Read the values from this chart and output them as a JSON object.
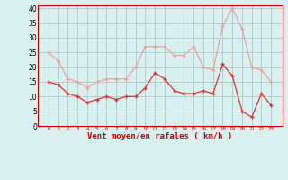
{
  "x": [
    0,
    1,
    2,
    3,
    4,
    5,
    6,
    7,
    8,
    9,
    10,
    11,
    12,
    13,
    14,
    15,
    16,
    17,
    18,
    19,
    20,
    21,
    22,
    23
  ],
  "y_mean": [
    15,
    14,
    11,
    10,
    8,
    9,
    10,
    9,
    10,
    10,
    13,
    18,
    16,
    12,
    11,
    11,
    12,
    11,
    21,
    17,
    5,
    3,
    11,
    7
  ],
  "y_gust": [
    25,
    22,
    16,
    15,
    13,
    15,
    16,
    16,
    16,
    20,
    27,
    27,
    27,
    24,
    24,
    27,
    20,
    19,
    34,
    40,
    33,
    20,
    19,
    15
  ],
  "color_mean": "#dd3333",
  "color_gust": "#f0a0a0",
  "xlabel": "Vent moyen/en rafales ( km/h )",
  "xlabel_color": "#cc0000",
  "background_color": "#d8f0f0",
  "grid_color": "#aacccc",
  "ylim": [
    0,
    41
  ],
  "yticks": [
    0,
    5,
    10,
    15,
    20,
    25,
    30,
    35,
    40
  ],
  "xticks": [
    0,
    1,
    2,
    3,
    4,
    5,
    6,
    7,
    8,
    9,
    10,
    11,
    12,
    13,
    14,
    15,
    16,
    17,
    18,
    19,
    20,
    21,
    22,
    23
  ],
  "tick_label_color": "#cc0000",
  "spine_color": "#cc0000",
  "marker_mean": "+",
  "marker_gust": "+"
}
